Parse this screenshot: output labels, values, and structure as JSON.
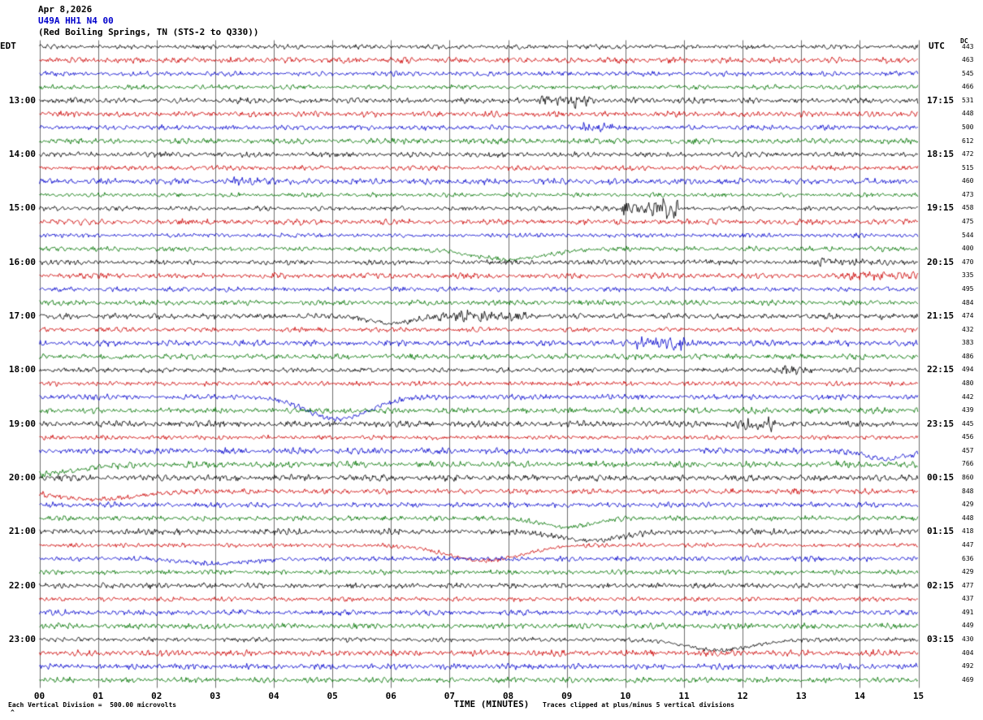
{
  "header": {
    "date": "Apr 8,2026",
    "station": "U49A HH1 N4 00",
    "location": "(Red Boiling Springs, TN (STS-2 to Q330))"
  },
  "axis": {
    "left": "EDT",
    "right": "UTC",
    "dc": "DC"
  },
  "footer": {
    "xlabel": "TIME (MINUTES)",
    "scale_note": "Each Vertical Division =  500.00 microvolts",
    "clip_note": "Traces clipped at plus/minus 5 vertical divisions",
    "corner_mark": "^"
  },
  "chart_data": {
    "type": "line",
    "subtype": "seismogram-helicorder",
    "title": "U49A HH1 N4 00 (Red Boiling Springs, TN (STS-2 to Q330)) Apr 8,2026",
    "xlabel": "TIME (MINUTES)",
    "x_ticks": [
      "00",
      "01",
      "02",
      "03",
      "04",
      "05",
      "06",
      "07",
      "08",
      "09",
      "10",
      "11",
      "12",
      "13",
      "14",
      "15"
    ],
    "minutes_per_row": 15,
    "vertical_division_microvolts": 500.0,
    "clip_divisions": 5,
    "grid_color": "#6e6e6e",
    "trace_colors": {
      "black": "#000000",
      "red": "#cc0000",
      "blue": "#0000cc",
      "green": "#007400"
    },
    "rows": [
      {
        "edt": "",
        "utc": "",
        "dc": "443",
        "color": "black"
      },
      {
        "edt": "",
        "utc": "",
        "dc": "463",
        "color": "red"
      },
      {
        "edt": "",
        "utc": "",
        "dc": "545",
        "color": "blue"
      },
      {
        "edt": "",
        "utc": "",
        "dc": "466",
        "color": "green"
      },
      {
        "edt": "13:00",
        "utc": "17:15",
        "dc": "531",
        "color": "black"
      },
      {
        "edt": "",
        "utc": "",
        "dc": "448",
        "color": "red"
      },
      {
        "edt": "",
        "utc": "",
        "dc": "500",
        "color": "blue"
      },
      {
        "edt": "",
        "utc": "",
        "dc": "612",
        "color": "green"
      },
      {
        "edt": "14:00",
        "utc": "18:15",
        "dc": "472",
        "color": "black"
      },
      {
        "edt": "",
        "utc": "",
        "dc": "515",
        "color": "red"
      },
      {
        "edt": "",
        "utc": "",
        "dc": "460",
        "color": "blue"
      },
      {
        "edt": "",
        "utc": "",
        "dc": "473",
        "color": "green"
      },
      {
        "edt": "15:00",
        "utc": "19:15",
        "dc": "458",
        "color": "black"
      },
      {
        "edt": "",
        "utc": "",
        "dc": "475",
        "color": "red"
      },
      {
        "edt": "",
        "utc": "",
        "dc": "544",
        "color": "blue"
      },
      {
        "edt": "",
        "utc": "",
        "dc": "400",
        "color": "green"
      },
      {
        "edt": "16:00",
        "utc": "20:15",
        "dc": "470",
        "color": "black"
      },
      {
        "edt": "",
        "utc": "",
        "dc": "335",
        "color": "red"
      },
      {
        "edt": "",
        "utc": "",
        "dc": "495",
        "color": "blue"
      },
      {
        "edt": "",
        "utc": "",
        "dc": "484",
        "color": "green"
      },
      {
        "edt": "17:00",
        "utc": "21:15",
        "dc": "474",
        "color": "black"
      },
      {
        "edt": "",
        "utc": "",
        "dc": "432",
        "color": "red"
      },
      {
        "edt": "",
        "utc": "",
        "dc": "383",
        "color": "blue"
      },
      {
        "edt": "",
        "utc": "",
        "dc": "486",
        "color": "green"
      },
      {
        "edt": "18:00",
        "utc": "22:15",
        "dc": "494",
        "color": "black"
      },
      {
        "edt": "",
        "utc": "",
        "dc": "480",
        "color": "red"
      },
      {
        "edt": "",
        "utc": "",
        "dc": "442",
        "color": "blue"
      },
      {
        "edt": "",
        "utc": "",
        "dc": "439",
        "color": "green"
      },
      {
        "edt": "19:00",
        "utc": "23:15",
        "dc": "445",
        "color": "black"
      },
      {
        "edt": "",
        "utc": "",
        "dc": "456",
        "color": "red"
      },
      {
        "edt": "",
        "utc": "",
        "dc": "457",
        "color": "blue"
      },
      {
        "edt": "",
        "utc": "",
        "dc": "766",
        "color": "green"
      },
      {
        "edt": "20:00",
        "utc": "00:15",
        "dc": "860",
        "color": "black"
      },
      {
        "edt": "",
        "utc": "",
        "dc": "848",
        "color": "red"
      },
      {
        "edt": "",
        "utc": "",
        "dc": "429",
        "color": "blue"
      },
      {
        "edt": "",
        "utc": "",
        "dc": "448",
        "color": "green"
      },
      {
        "edt": "21:00",
        "utc": "01:15",
        "dc": "418",
        "color": "black"
      },
      {
        "edt": "",
        "utc": "",
        "dc": "447",
        "color": "red"
      },
      {
        "edt": "",
        "utc": "",
        "dc": "636",
        "color": "blue"
      },
      {
        "edt": "",
        "utc": "",
        "dc": "429",
        "color": "green"
      },
      {
        "edt": "22:00",
        "utc": "02:15",
        "dc": "477",
        "color": "black"
      },
      {
        "edt": "",
        "utc": "",
        "dc": "437",
        "color": "red"
      },
      {
        "edt": "",
        "utc": "",
        "dc": "491",
        "color": "blue"
      },
      {
        "edt": "",
        "utc": "",
        "dc": "449",
        "color": "green"
      },
      {
        "edt": "23:00",
        "utc": "03:15",
        "dc": "430",
        "color": "black"
      },
      {
        "edt": "",
        "utc": "",
        "dc": "404",
        "color": "red"
      },
      {
        "edt": "",
        "utc": "",
        "dc": "492",
        "color": "blue"
      },
      {
        "edt": "",
        "utc": "",
        "dc": "469",
        "color": "green"
      }
    ],
    "events": [
      {
        "row": 4,
        "type": "burst",
        "start": 8.5,
        "end": 9.4,
        "factor": 2.4
      },
      {
        "row": 6,
        "type": "burst",
        "start": 9.2,
        "end": 9.9,
        "factor": 2.6
      },
      {
        "row": 10,
        "type": "burst",
        "start": 3.3,
        "end": 4.1,
        "factor": 1.7
      },
      {
        "row": 12,
        "type": "burst",
        "start": 9.9,
        "end": 10.9,
        "factor": 4.2
      },
      {
        "row": 15,
        "type": "dip",
        "center": 8.0,
        "width": 0.9,
        "depth": 13
      },
      {
        "row": 16,
        "type": "burst",
        "start": 13.3,
        "end": 14.5,
        "factor": 1.9
      },
      {
        "row": 17,
        "type": "burst",
        "start": 13.8,
        "end": 15.0,
        "factor": 2.0
      },
      {
        "row": 20,
        "type": "dip",
        "center": 6.0,
        "width": 0.5,
        "depth": 9
      },
      {
        "row": 20,
        "type": "burst",
        "start": 6.8,
        "end": 8.3,
        "factor": 2.0
      },
      {
        "row": 22,
        "type": "burst",
        "start": 10.2,
        "end": 11.0,
        "factor": 2.6
      },
      {
        "row": 24,
        "type": "burst",
        "start": 12.5,
        "end": 13.2,
        "factor": 1.8
      },
      {
        "row": 26,
        "type": "dip",
        "center": 5.1,
        "width": 0.75,
        "depth": 27
      },
      {
        "row": 28,
        "type": "burst",
        "start": 11.7,
        "end": 12.5,
        "factor": 2.2
      },
      {
        "row": 30,
        "type": "dip",
        "center": 14.45,
        "width": 0.5,
        "depth": 10
      },
      {
        "row": 31,
        "type": "dip",
        "center": -0.3,
        "width": 1.1,
        "depth": 14
      },
      {
        "row": 32,
        "type": "burst",
        "start": 0.0,
        "end": 15.0,
        "factor": 1.5
      },
      {
        "row": 33,
        "type": "dip",
        "center": 1.0,
        "width": 0.9,
        "depth": 10
      },
      {
        "row": 35,
        "type": "dip",
        "center": 9.0,
        "width": 0.6,
        "depth": 11
      },
      {
        "row": 36,
        "type": "dip",
        "center": 9.4,
        "width": 0.7,
        "depth": 11
      },
      {
        "row": 37,
        "type": "dip",
        "center": 7.6,
        "width": 0.9,
        "depth": 19
      },
      {
        "row": 38,
        "type": "dip",
        "center": 3.0,
        "width": 0.8,
        "depth": 6
      },
      {
        "row": 44,
        "type": "dip",
        "center": 11.6,
        "width": 0.8,
        "depth": 13
      }
    ]
  }
}
